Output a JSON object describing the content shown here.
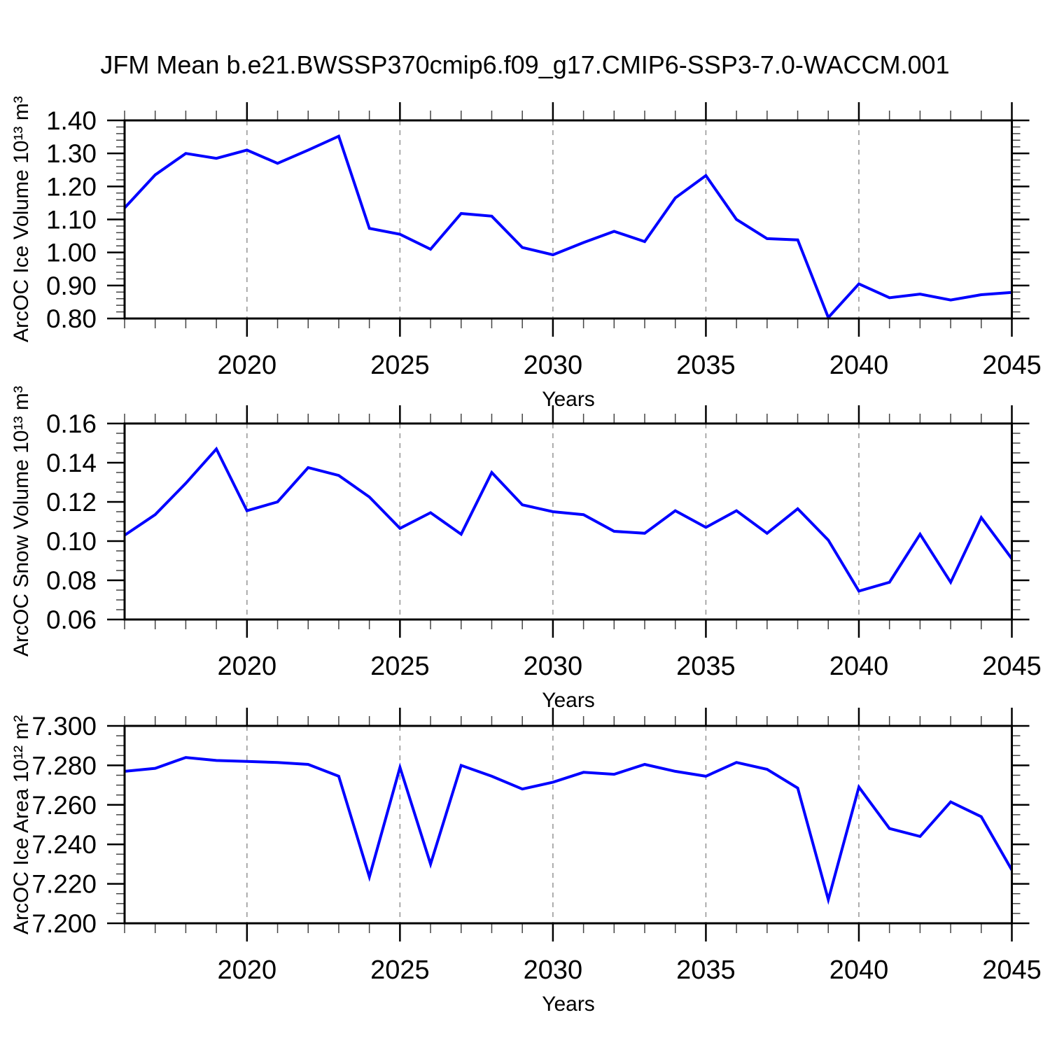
{
  "title": "JFM Mean b.e21.BWSSP370cmip6.f09_g17.CMIP6-SSP3-7.0-WACCM.001",
  "colors": {
    "line": "#0000ff",
    "grid": "#8c8c8c",
    "axis": "#000000",
    "minor_tick": "#444444",
    "background": "#ffffff",
    "text": "#000000"
  },
  "x_axis": {
    "label": "Years",
    "range": [
      2016,
      2045
    ],
    "labeled_ticks": [
      2020,
      2025,
      2030,
      2035,
      2040,
      2045
    ],
    "tick_labels": [
      "2020",
      "2025",
      "2030",
      "2035",
      "2040",
      "2045"
    ],
    "minor_step": 1,
    "grid_years": [
      2020,
      2025,
      2030,
      2035,
      2040
    ]
  },
  "chart_data": [
    {
      "type": "line",
      "name": "arcoc-ice-volume",
      "ylabel": "ArcOC Ice Volume 10¹³ m³",
      "xlabel": "Years",
      "ylim": [
        0.8,
        1.4
      ],
      "ymajor_step": 0.1,
      "yminor_step": 0.02,
      "ytick_labels": [
        "1.40",
        "1.30",
        "1.20",
        "1.10",
        "1.00",
        "0.90",
        "0.80"
      ],
      "x": [
        2016,
        2017,
        2018,
        2019,
        2020,
        2021,
        2022,
        2023,
        2024,
        2025,
        2026,
        2027,
        2028,
        2029,
        2030,
        2031,
        2032,
        2033,
        2034,
        2035,
        2036,
        2037,
        2038,
        2039,
        2040,
        2041,
        2042,
        2043,
        2044,
        2045
      ],
      "values": [
        1.135,
        1.235,
        1.3,
        1.285,
        1.31,
        1.27,
        1.31,
        1.352,
        1.073,
        1.055,
        1.01,
        1.118,
        1.11,
        1.015,
        0.993,
        1.03,
        1.064,
        1.033,
        1.165,
        1.233,
        1.1,
        1.042,
        1.038,
        0.803,
        0.905,
        0.863,
        0.874,
        0.856,
        0.872,
        0.879
      ]
    },
    {
      "type": "line",
      "name": "arcoc-snow-volume",
      "ylabel": "ArcOC Snow Volume 10¹³ m³",
      "xlabel": "Years",
      "ylim": [
        0.06,
        0.16
      ],
      "ymajor_step": 0.02,
      "yminor_step": 0.005,
      "ytick_labels": [
        "0.16",
        "0.14",
        "0.12",
        "0.10",
        "0.08",
        "0.06"
      ],
      "x": [
        2016,
        2017,
        2018,
        2019,
        2020,
        2021,
        2022,
        2023,
        2024,
        2025,
        2026,
        2027,
        2028,
        2029,
        2030,
        2031,
        2032,
        2033,
        2034,
        2035,
        2036,
        2037,
        2038,
        2039,
        2040,
        2041,
        2042,
        2043,
        2044,
        2045
      ],
      "values": [
        0.103,
        0.1135,
        0.1295,
        0.147,
        0.1155,
        0.12,
        0.1375,
        0.1335,
        0.1225,
        0.1065,
        0.1145,
        0.1035,
        0.135,
        0.1185,
        0.115,
        0.1135,
        0.105,
        0.104,
        0.1155,
        0.107,
        0.1155,
        0.104,
        0.1165,
        0.1005,
        0.0745,
        0.079,
        0.1035,
        0.079,
        0.112,
        0.091
      ]
    },
    {
      "type": "line",
      "name": "arcoc-ice-area",
      "ylabel": "ArcOC Ice Area 10¹² m²",
      "xlabel": "Years",
      "ylim": [
        7.2,
        7.3
      ],
      "ymajor_step": 0.02,
      "yminor_step": 0.005,
      "ytick_labels": [
        "7.300",
        "7.280",
        "7.260",
        "7.240",
        "7.220",
        "7.200"
      ],
      "x": [
        2016,
        2017,
        2018,
        2019,
        2020,
        2021,
        2022,
        2023,
        2024,
        2025,
        2026,
        2027,
        2028,
        2029,
        2030,
        2031,
        2032,
        2033,
        2034,
        2035,
        2036,
        2037,
        2038,
        2039,
        2040,
        2041,
        2042,
        2043,
        2044,
        2045
      ],
      "values": [
        7.277,
        7.2785,
        7.284,
        7.2825,
        7.282,
        7.2815,
        7.2805,
        7.2745,
        7.2235,
        7.279,
        7.23,
        7.28,
        7.2745,
        7.268,
        7.2715,
        7.2765,
        7.2755,
        7.2805,
        7.277,
        7.2745,
        7.2815,
        7.278,
        7.2685,
        7.212,
        7.269,
        7.248,
        7.244,
        7.2615,
        7.254,
        7.227
      ]
    }
  ]
}
